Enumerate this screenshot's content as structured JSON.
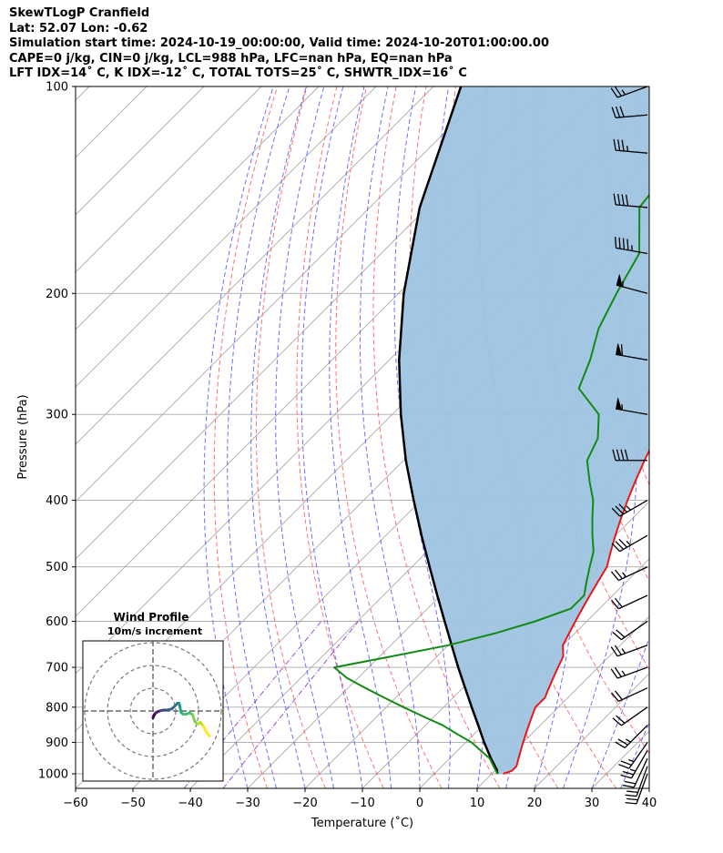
{
  "header": {
    "line1": "SkewTLogP Cranfield",
    "line2": "Lat: 52.07   Lon: -0.62",
    "line3": "Simulation start time: 2024-10-19_00:00:00, Valid time: 2024-10-20T01:00:00.00",
    "line4": "CAPE=0 j/kg, CIN=0 j/kg, LCL=988 hPa, LFC=nan hPa, EQ=nan hPa",
    "line5": "LFT IDX=14˚ C, K IDX=-12˚ C, TOTAL TOTS=25˚ C, SHWTR_IDX=16˚ C"
  },
  "colors": {
    "temperature": "#e8191a",
    "dewpoint": "#138a13",
    "parcel": "#000000",
    "cape_fill": "#9ec4e0",
    "dry_adiabat": "#ff5a5a",
    "moist_adiabat": "#4a4aff",
    "mixing_ratio": "#8f3fcf",
    "isotherm": "#aaaaaa"
  },
  "chart_data": {
    "type": "line",
    "title": "",
    "xlabel": "Temperature (˚C)",
    "ylabel": "Pressure (hPa)",
    "x_range": [
      -60,
      40
    ],
    "y_range": [
      1050,
      100
    ],
    "y_scale": "log",
    "grid": true,
    "x_ticks": [
      -60,
      -50,
      -40,
      -30,
      -20,
      -10,
      0,
      10,
      20,
      30,
      40
    ],
    "x_tick_labels": [
      "−60",
      "−50",
      "−40",
      "−30",
      "−20",
      "−10",
      "0",
      "10",
      "20",
      "30",
      "40"
    ],
    "y_ticks": [
      100,
      200,
      300,
      400,
      500,
      600,
      700,
      800,
      900,
      1000
    ],
    "y_tick_labels": [
      "100",
      "200",
      "300",
      "400",
      "500",
      "600",
      "700",
      "800",
      "900",
      "1000"
    ],
    "temperature": {
      "p": [
        1000,
        990,
        975,
        950,
        925,
        900,
        875,
        850,
        825,
        800,
        775,
        750,
        725,
        700,
        675,
        650,
        625,
        600,
        575,
        550,
        525,
        500,
        475,
        450,
        425,
        400,
        375,
        350,
        325,
        300,
        275,
        250,
        225,
        200,
        175,
        150,
        125,
        100
      ],
      "t": [
        12,
        13,
        13,
        12,
        11,
        10,
        9,
        8,
        7,
        6,
        6,
        5,
        4,
        3,
        2,
        0,
        -1,
        -2,
        -3,
        -4,
        -5,
        -6,
        -8,
        -10,
        -12,
        -14,
        -16,
        -18,
        -20,
        -23,
        -28,
        -33,
        -37,
        -43,
        -46,
        -47,
        -50,
        -54
      ]
    },
    "dewpoint": {
      "p": [
        1000,
        975,
        950,
        925,
        900,
        875,
        850,
        825,
        800,
        775,
        750,
        725,
        700,
        675,
        650,
        625,
        600,
        575,
        550,
        525,
        500,
        475,
        450,
        425,
        400,
        375,
        350,
        325,
        300,
        275,
        250,
        225,
        200,
        175,
        150,
        125,
        100
      ],
      "td": [
        11,
        9,
        7,
        4,
        1,
        -3,
        -7,
        -12,
        -17,
        -22,
        -27,
        -32,
        -36,
        -28,
        -20,
        -14,
        -9,
        -5,
        -5,
        -7,
        -9,
        -11,
        -14,
        -17,
        -20,
        -24,
        -28,
        -30,
        -34,
        -42,
        -45,
        -49,
        -52,
        -55,
        -63,
        -65,
        -64
      ]
    },
    "parcel": {
      "p": [
        1000,
        988,
        950,
        900,
        850,
        800,
        750,
        700,
        650,
        600,
        550,
        500,
        450,
        400,
        350,
        300,
        250,
        200,
        150,
        100
      ],
      "t": [
        11,
        10.3,
        7.2,
        3.2,
        -0.8,
        -5.1,
        -9.6,
        -14.4,
        -19.4,
        -24.8,
        -30.6,
        -36.9,
        -43.8,
        -51.3,
        -59.6,
        -68.5,
        -78.3,
        -89.1,
        -101.3,
        -115.2
      ]
    },
    "wind_barbs": [
      {
        "p": 1000,
        "speed_kt": 20,
        "dir_deg": 200
      },
      {
        "p": 975,
        "speed_kt": 20,
        "dir_deg": 200
      },
      {
        "p": 950,
        "speed_kt": 20,
        "dir_deg": 205
      },
      {
        "p": 925,
        "speed_kt": 25,
        "dir_deg": 210
      },
      {
        "p": 900,
        "speed_kt": 25,
        "dir_deg": 215
      },
      {
        "p": 850,
        "speed_kt": 25,
        "dir_deg": 225
      },
      {
        "p": 800,
        "speed_kt": 20,
        "dir_deg": 235
      },
      {
        "p": 750,
        "speed_kt": 20,
        "dir_deg": 245
      },
      {
        "p": 700,
        "speed_kt": 25,
        "dir_deg": 250
      },
      {
        "p": 650,
        "speed_kt": 25,
        "dir_deg": 250
      },
      {
        "p": 600,
        "speed_kt": 20,
        "dir_deg": 235
      },
      {
        "p": 550,
        "speed_kt": 20,
        "dir_deg": 245
      },
      {
        "p": 500,
        "speed_kt": 25,
        "dir_deg": 245
      },
      {
        "p": 450,
        "speed_kt": 35,
        "dir_deg": 240
      },
      {
        "p": 400,
        "speed_kt": 35,
        "dir_deg": 240
      },
      {
        "p": 350,
        "speed_kt": 40,
        "dir_deg": 270
      },
      {
        "p": 300,
        "speed_kt": 55,
        "dir_deg": 280
      },
      {
        "p": 250,
        "speed_kt": 60,
        "dir_deg": 280
      },
      {
        "p": 200,
        "speed_kt": 55,
        "dir_deg": 285
      },
      {
        "p": 175,
        "speed_kt": 45,
        "dir_deg": 280
      },
      {
        "p": 150,
        "speed_kt": 40,
        "dir_deg": 275
      },
      {
        "p": 125,
        "speed_kt": 35,
        "dir_deg": 275
      },
      {
        "p": 110,
        "speed_kt": 30,
        "dir_deg": 265
      },
      {
        "p": 100,
        "speed_kt": 25,
        "dir_deg": 250
      }
    ],
    "inset": {
      "title_line1": "Wind Profile",
      "title_line2": "10m/s increment",
      "rings_ms": [
        10,
        20,
        30
      ],
      "hodograph_u": [
        0.0,
        0.6,
        1.2,
        2.4,
        3.6,
        4.8,
        6.0,
        7.2,
        8.4,
        9.6,
        10.8,
        11.4,
        11.8,
        12.0,
        12.4,
        13.2,
        14.6,
        16.0,
        17.4,
        18.4,
        19.6,
        20.8,
        22.2,
        23.6,
        24.8
      ],
      "hodograph_v": [
        -3.0,
        -1.6,
        -0.8,
        -0.2,
        0.2,
        0.4,
        0.4,
        0.6,
        1.0,
        2.2,
        3.4,
        3.4,
        2.2,
        0.8,
        -0.6,
        -1.4,
        -1.4,
        -0.8,
        -1.6,
        -4.6,
        -5.8,
        -5.0,
        -6.8,
        -9.4,
        -11.0
      ]
    }
  }
}
